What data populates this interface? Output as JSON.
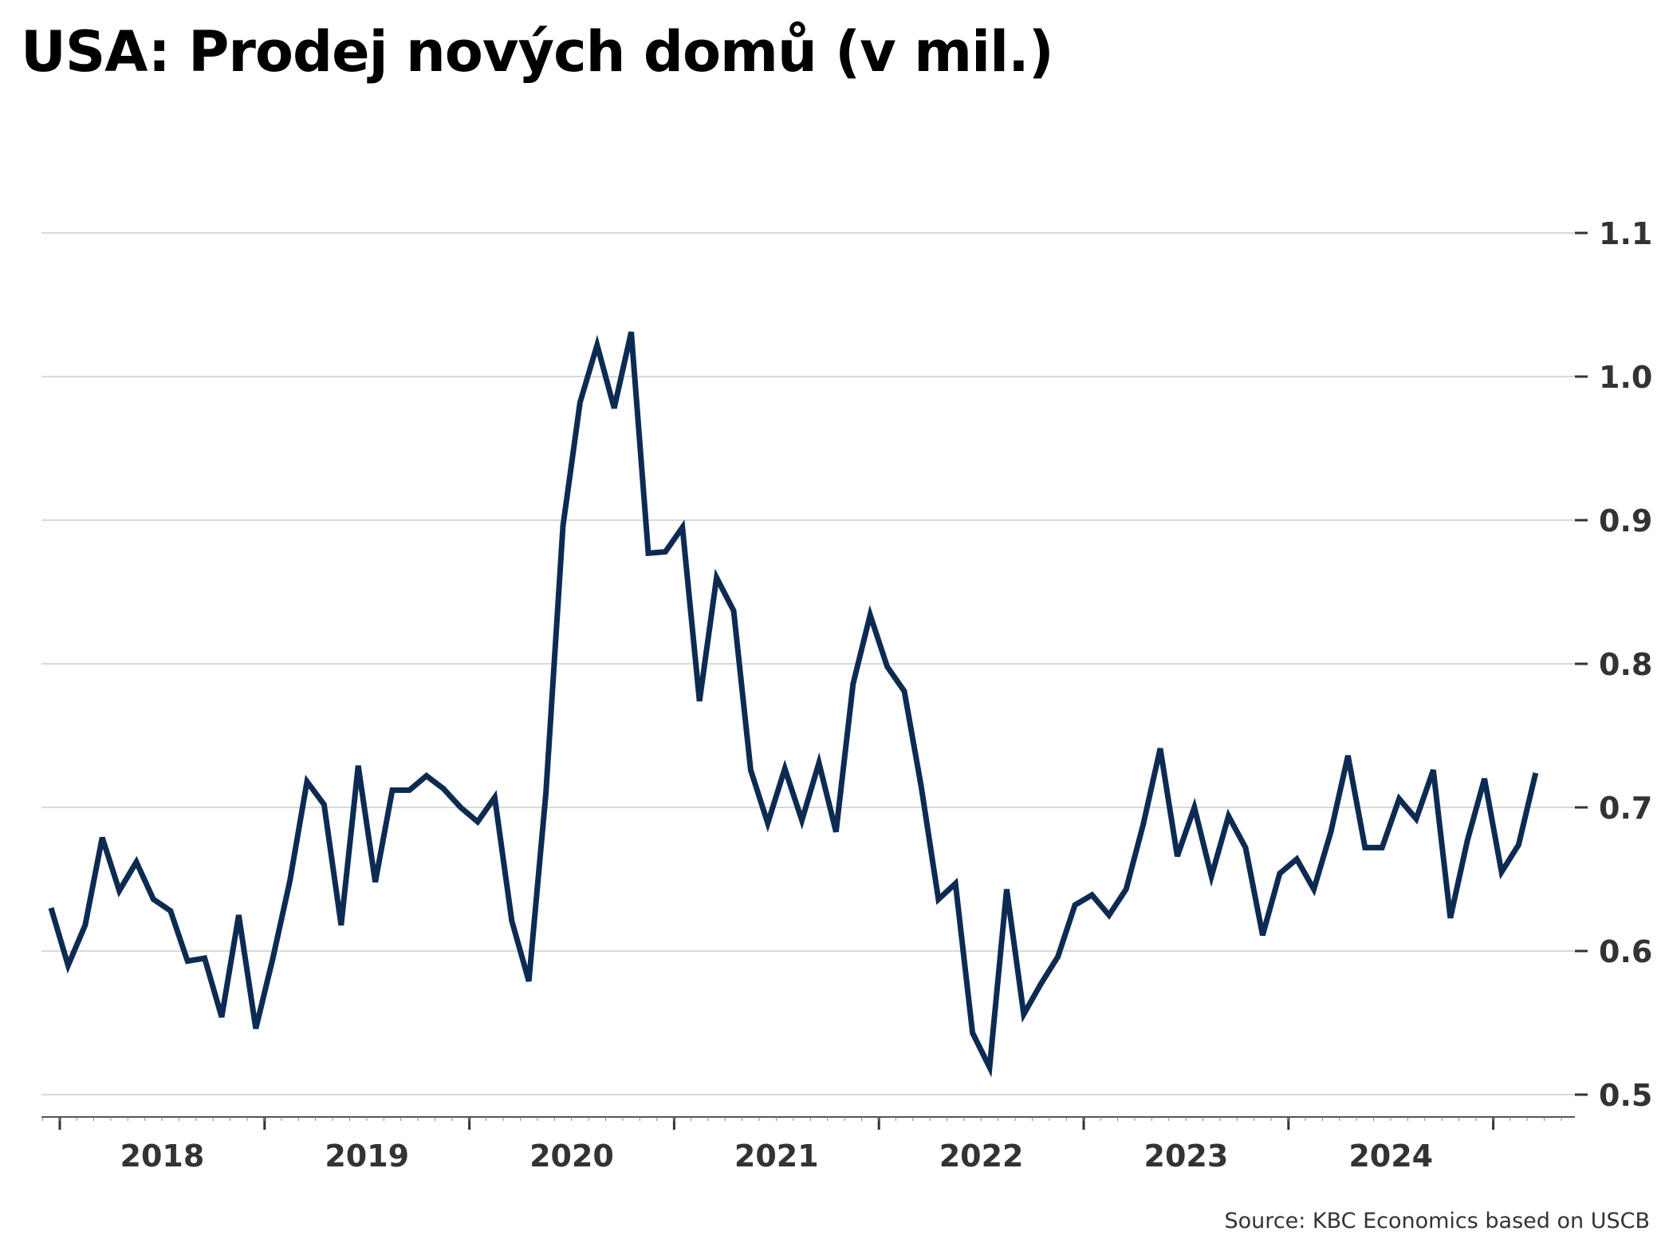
{
  "title": "USA: Prodej nových domů (v mil.)",
  "source": "Source: KBC Economics based on USCB",
  "colors": {
    "line": "#0d2b52",
    "grid": "#d9d9d9",
    "axis": "#333333",
    "text": "#333333"
  },
  "chart_data": {
    "type": "line",
    "title": "USA: Prodej nových domů (v mil.)",
    "xlabel": "",
    "ylabel": "",
    "ylim": [
      0.5,
      1.1
    ],
    "yticks": [
      0.5,
      0.6,
      0.7,
      0.8,
      0.9,
      1.0,
      1.1
    ],
    "ytick_labels": [
      "0.5",
      "0.6",
      "0.7",
      "0.8",
      "0.9",
      "1.0",
      "1.1"
    ],
    "x_axis_side": "bottom",
    "y_axis_side": "right",
    "grid": "horizontal",
    "legend": "none",
    "year_labels": [
      "2018",
      "2019",
      "2020",
      "2021",
      "2022",
      "2023",
      "2024"
    ],
    "x_start": "2018-01",
    "frequency": "monthly",
    "series": [
      {
        "values": [
          0.63,
          0.59,
          0.618,
          0.679,
          0.642,
          0.662,
          0.636,
          0.628,
          0.593,
          0.595,
          0.554,
          0.625,
          0.546,
          0.595,
          0.649,
          0.718,
          0.702,
          0.618,
          0.729,
          0.648,
          0.712,
          0.712,
          0.722,
          0.713,
          0.7,
          0.69,
          0.707,
          0.621,
          0.579,
          0.71,
          0.896,
          0.982,
          1.022,
          0.978,
          1.031,
          0.877,
          0.878,
          0.895,
          0.774,
          0.86,
          0.837,
          0.726,
          0.689,
          0.727,
          0.691,
          0.731,
          0.683,
          0.786,
          0.834,
          0.798,
          0.781,
          0.714,
          0.636,
          0.647,
          0.543,
          0.519,
          0.643,
          0.556,
          0.577,
          0.596,
          0.632,
          0.639,
          0.625,
          0.643,
          0.688,
          0.741,
          0.666,
          0.7,
          0.652,
          0.694,
          0.672,
          0.611,
          0.654,
          0.664,
          0.643,
          0.683,
          0.736,
          0.672,
          0.672,
          0.706,
          0.692,
          0.726,
          0.623,
          0.677,
          0.72,
          0.655,
          0.674,
          0.724
        ]
      }
    ]
  }
}
